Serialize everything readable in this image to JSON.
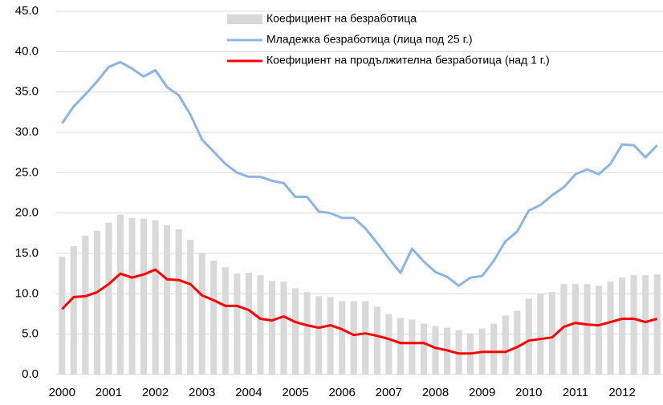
{
  "chart_data": {
    "type": "combo",
    "categories": [
      "2000",
      null,
      null,
      null,
      "2001",
      null,
      null,
      null,
      "2002",
      null,
      null,
      null,
      "2003",
      null,
      null,
      null,
      "2004",
      null,
      null,
      null,
      "2005",
      null,
      null,
      null,
      "2006",
      null,
      null,
      null,
      "2007",
      null,
      null,
      null,
      "2008",
      null,
      null,
      null,
      "2009",
      null,
      null,
      null,
      "2010",
      null,
      null,
      null,
      "2011",
      null,
      null,
      null,
      "2012",
      null,
      null,
      null
    ],
    "series": [
      {
        "name": "Коефициент на безработица",
        "type": "bar",
        "color": "#d9d9d9",
        "values": [
          14.6,
          15.9,
          17.2,
          17.8,
          18.8,
          19.8,
          19.4,
          19.3,
          19.1,
          18.5,
          18.0,
          16.7,
          15.1,
          14.1,
          13.3,
          12.5,
          12.6,
          12.3,
          11.6,
          11.5,
          10.7,
          10.2,
          9.7,
          9.6,
          9.1,
          9.1,
          9.1,
          8.4,
          7.5,
          7.0,
          6.8,
          6.3,
          6.0,
          5.8,
          5.5,
          5.1,
          5.7,
          6.3,
          7.3,
          7.9,
          9.4,
          10.0,
          10.2,
          11.2,
          11.2,
          11.2,
          11.0,
          11.5,
          12.0,
          12.3,
          12.3,
          12.4
        ]
      },
      {
        "name": "Младежка безработица (лица под 25 г.)",
        "type": "line",
        "color": "#8db4e2",
        "values": [
          31.1,
          33.2,
          34.7,
          36.3,
          38.1,
          38.7,
          37.9,
          36.9,
          37.7,
          35.6,
          34.6,
          32.2,
          29.1,
          27.6,
          26.1,
          25.0,
          24.5,
          24.5,
          24.0,
          23.7,
          22.0,
          22.0,
          20.2,
          20.0,
          19.4,
          19.4,
          18.1,
          16.3,
          14.4,
          12.6,
          15.6,
          14.0,
          12.7,
          12.1,
          11.0,
          12.0,
          12.2,
          14.1,
          16.5,
          17.7,
          20.3,
          21.0,
          22.2,
          23.2,
          24.8,
          25.4,
          24.8,
          26.1,
          28.5,
          28.4,
          26.9,
          28.4
        ]
      },
      {
        "name": "Коефициент на продължителна безработица (над 1 г.)",
        "type": "line",
        "color": "#ff0000",
        "values": [
          8.1,
          9.6,
          9.7,
          10.2,
          11.2,
          12.5,
          12.0,
          12.4,
          13.0,
          11.8,
          11.7,
          11.2,
          9.8,
          9.2,
          8.5,
          8.5,
          8.0,
          6.9,
          6.7,
          7.2,
          6.5,
          6.1,
          5.8,
          6.1,
          5.6,
          4.9,
          5.1,
          4.8,
          4.4,
          3.9,
          3.9,
          3.9,
          3.3,
          3.0,
          2.6,
          2.6,
          2.8,
          2.8,
          2.8,
          3.4,
          4.2,
          4.4,
          4.6,
          5.9,
          6.4,
          6.2,
          6.1,
          6.5,
          6.9,
          6.9,
          6.5,
          6.9
        ]
      }
    ],
    "ylim": [
      0,
      45
    ],
    "yticks": [
      {
        "value": 0,
        "label": "0.0"
      },
      {
        "value": 5,
        "label": "5.0"
      },
      {
        "value": 10,
        "label": "10.0"
      },
      {
        "value": 15,
        "label": "15.0"
      },
      {
        "value": 20,
        "label": "20.0"
      },
      {
        "value": 25,
        "label": "25.0"
      },
      {
        "value": 30,
        "label": "30.0"
      },
      {
        "value": 35,
        "label": "35.0"
      },
      {
        "value": 40,
        "label": "40.0"
      },
      {
        "value": 45,
        "label": "45.0"
      }
    ],
    "grid": true
  }
}
